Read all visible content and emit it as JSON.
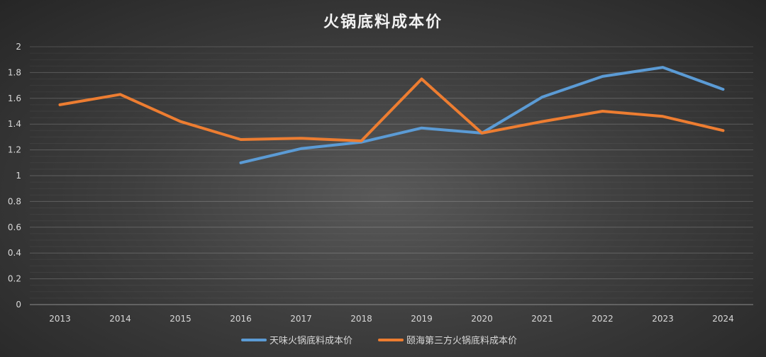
{
  "chart_data": {
    "type": "line",
    "title": "火锅底料成本价",
    "xlabel": "",
    "ylabel": "",
    "categories": [
      "2013",
      "2014",
      "2015",
      "2016",
      "2017",
      "2018",
      "2019",
      "2020",
      "2021",
      "2022",
      "2023",
      "2024"
    ],
    "ylim": [
      0,
      2
    ],
    "yticks": [
      "0",
      "0.2",
      "0.4",
      "0.6",
      "0.8",
      "1",
      "1.2",
      "1.4",
      "1.6",
      "1.8",
      "2"
    ],
    "grid": true,
    "legend_position": "bottom",
    "series": [
      {
        "name": "天味火锅底料成本价",
        "color": "#5b9bd5",
        "values": [
          null,
          null,
          null,
          1.1,
          1.21,
          1.26,
          1.37,
          1.33,
          1.61,
          1.77,
          1.84,
          1.67
        ]
      },
      {
        "name": "颐海第三方火锅底料成本价",
        "color": "#ed7d31",
        "values": [
          1.55,
          1.63,
          1.42,
          1.28,
          1.29,
          1.27,
          1.75,
          1.33,
          1.42,
          1.5,
          1.46,
          1.35
        ]
      }
    ]
  }
}
